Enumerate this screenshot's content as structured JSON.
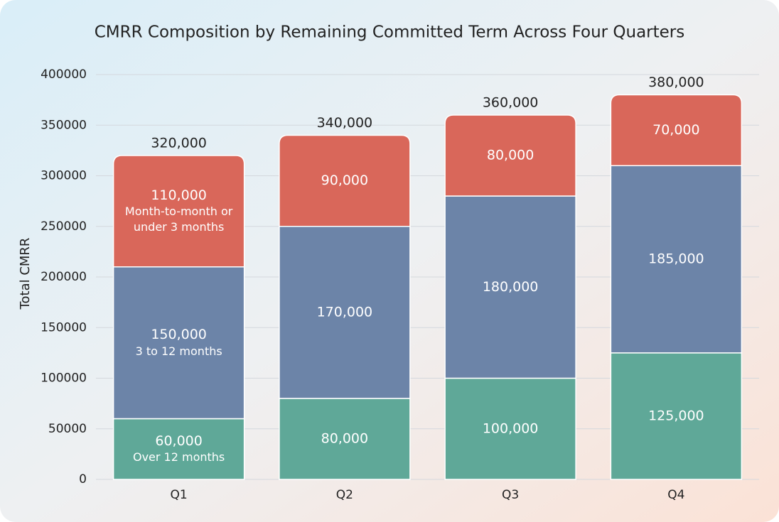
{
  "chart_data": {
    "type": "stacked_bar",
    "title": "CMRR Composition by Remaining Committed Term Across Four Quarters",
    "y_label": "Total CMRR",
    "categories": [
      "Q1",
      "Q2",
      "Q3",
      "Q4"
    ],
    "series": [
      {
        "name": "Over 12 months",
        "color": "#5fa898",
        "values": [
          60000,
          80000,
          100000,
          125000
        ],
        "value_labels": [
          "60,000",
          "80,000",
          "100,000",
          "125,000"
        ]
      },
      {
        "name": "3 to 12 months",
        "color": "#6c84a8",
        "values": [
          150000,
          170000,
          180000,
          185000
        ],
        "value_labels": [
          "150,000",
          "170,000",
          "180,000",
          "185,000"
        ]
      },
      {
        "name": "Month-to-month or under 3 months",
        "color": "#d9675a",
        "values": [
          110000,
          90000,
          80000,
          70000
        ],
        "value_labels": [
          "110,000",
          "90,000",
          "80,000",
          "70,000"
        ]
      }
    ],
    "totals": {
      "values": [
        320000,
        340000,
        360000,
        380000
      ],
      "value_labels": [
        "320,000",
        "340,000",
        "360,000",
        "380,000"
      ]
    },
    "ylim": [
      0,
      400000
    ],
    "yticks": [
      0,
      50000,
      100000,
      150000,
      200000,
      250000,
      300000,
      350000,
      400000
    ],
    "grid": true
  }
}
